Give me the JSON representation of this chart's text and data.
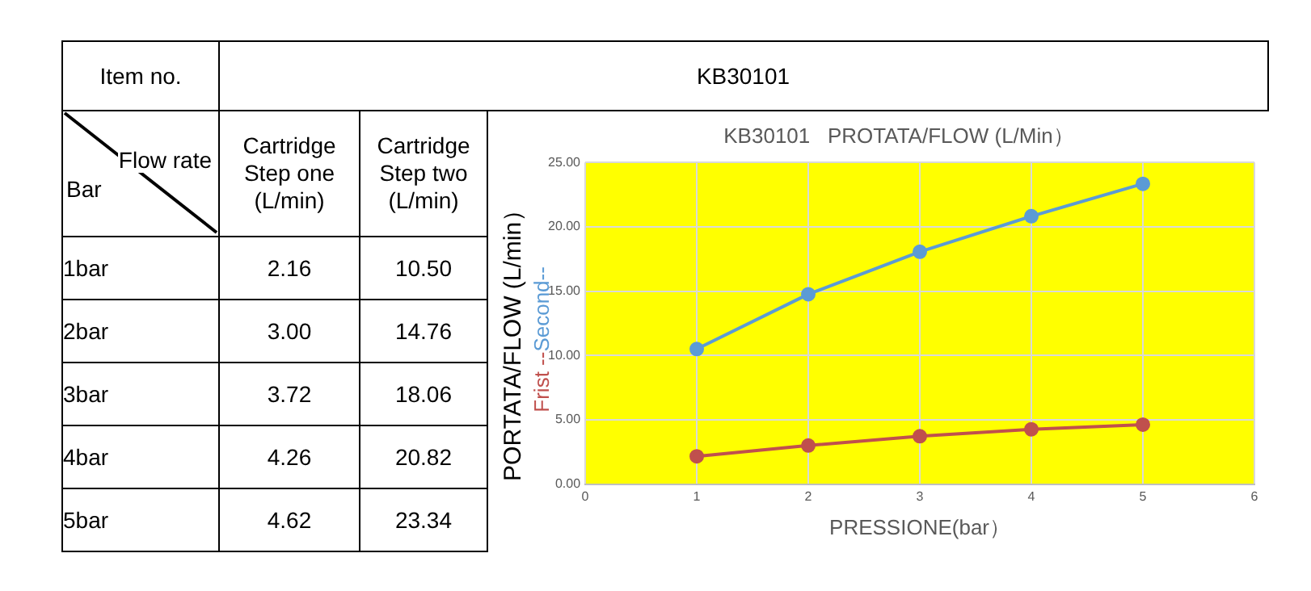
{
  "chart_data": {
    "type": "line",
    "title": "KB30101   PROTATA/FLOW (L/Min）",
    "xlabel": "PRESSIONE(bar）",
    "ylabel": "PORTATA/FLOW (L/min）",
    "x": [
      1,
      2,
      3,
      4,
      5
    ],
    "series": [
      {
        "name": "Frist --",
        "color": "#c0504d",
        "values": [
          2.16,
          3.0,
          3.72,
          4.26,
          4.62
        ]
      },
      {
        "name": "Second--",
        "color": "#5b9bd5",
        "values": [
          10.5,
          14.76,
          18.06,
          20.82,
          23.34
        ]
      }
    ],
    "xlim": [
      0,
      6
    ],
    "xticks": [
      0,
      1,
      2,
      3,
      4,
      5,
      6
    ],
    "ylim": [
      0,
      25
    ],
    "yticks": [
      {
        "value": 0,
        "label": "0.00"
      },
      {
        "value": 5,
        "label": "5.00"
      },
      {
        "value": 10,
        "label": "10.00"
      },
      {
        "value": 15,
        "label": "15.00"
      },
      {
        "value": 20,
        "label": "20.00"
      },
      {
        "value": 25,
        "label": "25.00"
      }
    ],
    "grid": true,
    "marker": "circle",
    "line_style": "solid",
    "legend": false,
    "annotations": [
      "Item no.",
      "KB30101",
      "Flow rate",
      "Bar",
      "Cartridge\nStep one\n(L/min)",
      "Cartridge\nStep two\n(L/min)",
      "1bar",
      "2.16",
      "10.50",
      "2bar",
      "3.00",
      "14.76",
      "3bar",
      "3.72",
      "18.06",
      "4bar",
      "4.26",
      "20.82",
      "5bar",
      "4.62",
      "23.34"
    ]
  }
}
